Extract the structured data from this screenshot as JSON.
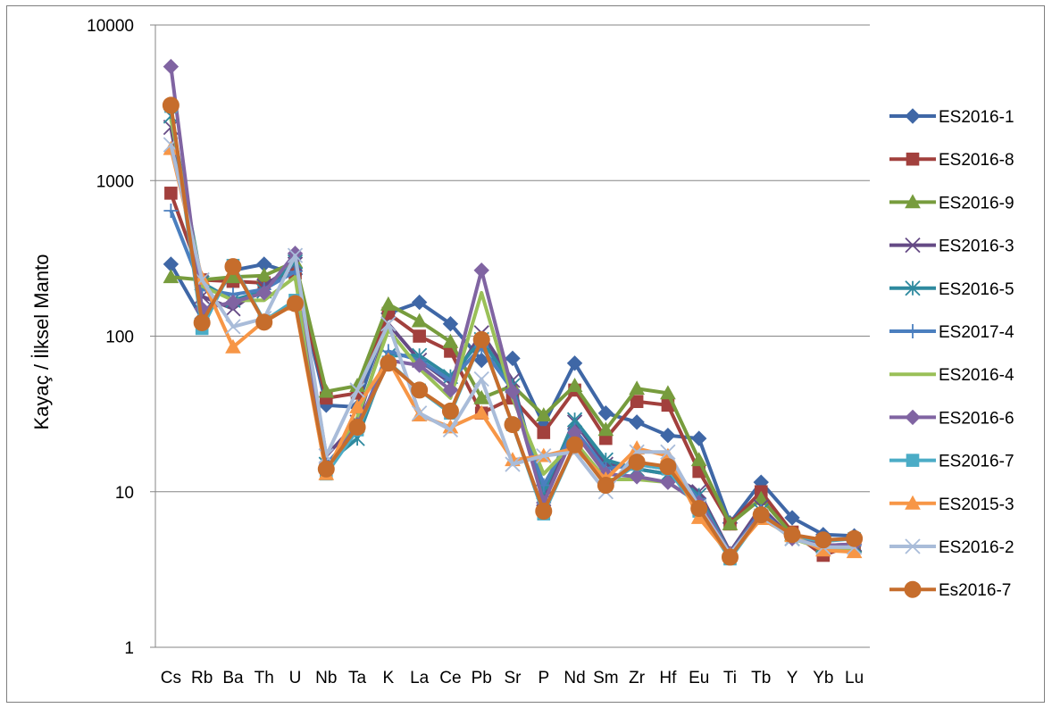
{
  "chart_data": {
    "type": "line",
    "title": "",
    "xlabel": "",
    "ylabel": "Kayaç / İlksel Manto",
    "yscale": "log",
    "ylim": [
      1,
      10000
    ],
    "yticks": [
      1,
      10,
      100,
      1000,
      10000
    ],
    "ytick_labels": [
      "1",
      "10",
      "100",
      "1000",
      "10000"
    ],
    "grid": "horizontal",
    "legend_position": "right",
    "categories": [
      "Cs",
      "Rb",
      "Ba",
      "Th",
      "U",
      "Nb",
      "Ta",
      "K",
      "La",
      "Ce",
      "Pb",
      "Sr",
      "P",
      "Nd",
      "Sm",
      "Zr",
      "Hf",
      "Eu",
      "Ti",
      "Tb",
      "Y",
      "Yb",
      "Lu"
    ],
    "series": [
      {
        "name": "ES2016-1",
        "color": "#3f67a6",
        "marker": "diamond",
        "values": [
          290,
          130,
          265,
          290,
          250,
          36,
          35,
          140,
          165,
          120,
          70,
          72,
          27,
          67,
          32,
          28,
          23,
          22,
          6.3,
          11.5,
          6.8,
          5.3,
          5.2
        ]
      },
      {
        "name": "ES2016-8",
        "color": "#a2403d",
        "marker": "square",
        "values": [
          830,
          230,
          225,
          220,
          255,
          40,
          43,
          140,
          100,
          80,
          32,
          40,
          24,
          45,
          22,
          38,
          36,
          13.5,
          6.2,
          10,
          5.5,
          3.9,
          4.6
        ]
      },
      {
        "name": "ES2016-9",
        "color": "#779c3d",
        "marker": "triangle",
        "values": [
          240,
          230,
          240,
          245,
          300,
          44,
          48,
          160,
          125,
          92,
          40,
          48,
          31,
          48,
          25,
          46,
          43,
          16,
          6.2,
          9,
          5.3,
          4.5,
          4.5
        ]
      },
      {
        "name": "ES2016-3",
        "color": "#654a85",
        "marker": "x",
        "values": [
          2200,
          180,
          150,
          210,
          290,
          17,
          28,
          120,
          70,
          50,
          105,
          52,
          9,
          28,
          15,
          14,
          13,
          10,
          4.1,
          8,
          5,
          4.5,
          4.6
        ]
      },
      {
        "name": "ES2016-5",
        "color": "#2f8a9f",
        "marker": "star",
        "values": [
          2600,
          220,
          170,
          195,
          300,
          15,
          22,
          75,
          75,
          55,
          95,
          48,
          10,
          29,
          16,
          14,
          13,
          9.5,
          4,
          7.5,
          5,
          4.5,
          4.5
        ]
      },
      {
        "name": "ES2017-4",
        "color": "#4b7fbf",
        "marker": "plus",
        "values": [
          640,
          200,
          185,
          200,
          260,
          15,
          25,
          80,
          70,
          52,
          85,
          45,
          11,
          25,
          14,
          15,
          14,
          9,
          4,
          7.5,
          5,
          4.5,
          4.5
        ]
      },
      {
        "name": "ES2016-4",
        "color": "#9ac058",
        "marker": "none",
        "values": [
          2500,
          210,
          170,
          170,
          240,
          13,
          30,
          110,
          62,
          40,
          190,
          40,
          13,
          21,
          12,
          12,
          11.5,
          8.5,
          3.9,
          7,
          5,
          4.3,
          4.3
        ]
      },
      {
        "name": "ES2016-6",
        "color": "#8064a2",
        "marker": "diamond",
        "values": [
          5400,
          150,
          165,
          190,
          340,
          14,
          27,
          70,
          65,
          45,
          265,
          44,
          8.5,
          24,
          13,
          12.5,
          11.5,
          8.5,
          4,
          7.2,
          5,
          4.5,
          4.6
        ]
      },
      {
        "name": "ES2016-7",
        "color": "#4bacc6",
        "marker": "square",
        "values": [
          3000,
          112,
          285,
          125,
          170,
          13,
          25,
          68,
          45,
          32,
          95,
          27,
          7.2,
          20,
          11,
          15,
          14,
          7.5,
          3.7,
          7,
          5.2,
          4.8,
          5
        ]
      },
      {
        "name": "ES2015-3",
        "color": "#f79646",
        "marker": "triangle",
        "values": [
          1600,
          235,
          85,
          125,
          160,
          13,
          35,
          70,
          31,
          26,
          32,
          16,
          17,
          19,
          12,
          19,
          17,
          6.8,
          3.9,
          6.7,
          5.2,
          4.2,
          4.1
        ]
      },
      {
        "name": "ES2016-2",
        "color": "#a9bcd9",
        "marker": "x",
        "values": [
          1700,
          230,
          115,
          130,
          330,
          17,
          45,
          120,
          32,
          25,
          53,
          15,
          17,
          18,
          10,
          18,
          18,
          8,
          4,
          7,
          5,
          4.4,
          4.4
        ]
      },
      {
        "name": "Es2016-7",
        "color": "#c66d2c",
        "marker": "circle",
        "values": [
          3050,
          122,
          280,
          123,
          162,
          14,
          26,
          67,
          45,
          33,
          95,
          27,
          7.5,
          20,
          11,
          15.5,
          14.5,
          7.8,
          3.8,
          7.1,
          5.3,
          4.9,
          5
        ]
      }
    ]
  }
}
